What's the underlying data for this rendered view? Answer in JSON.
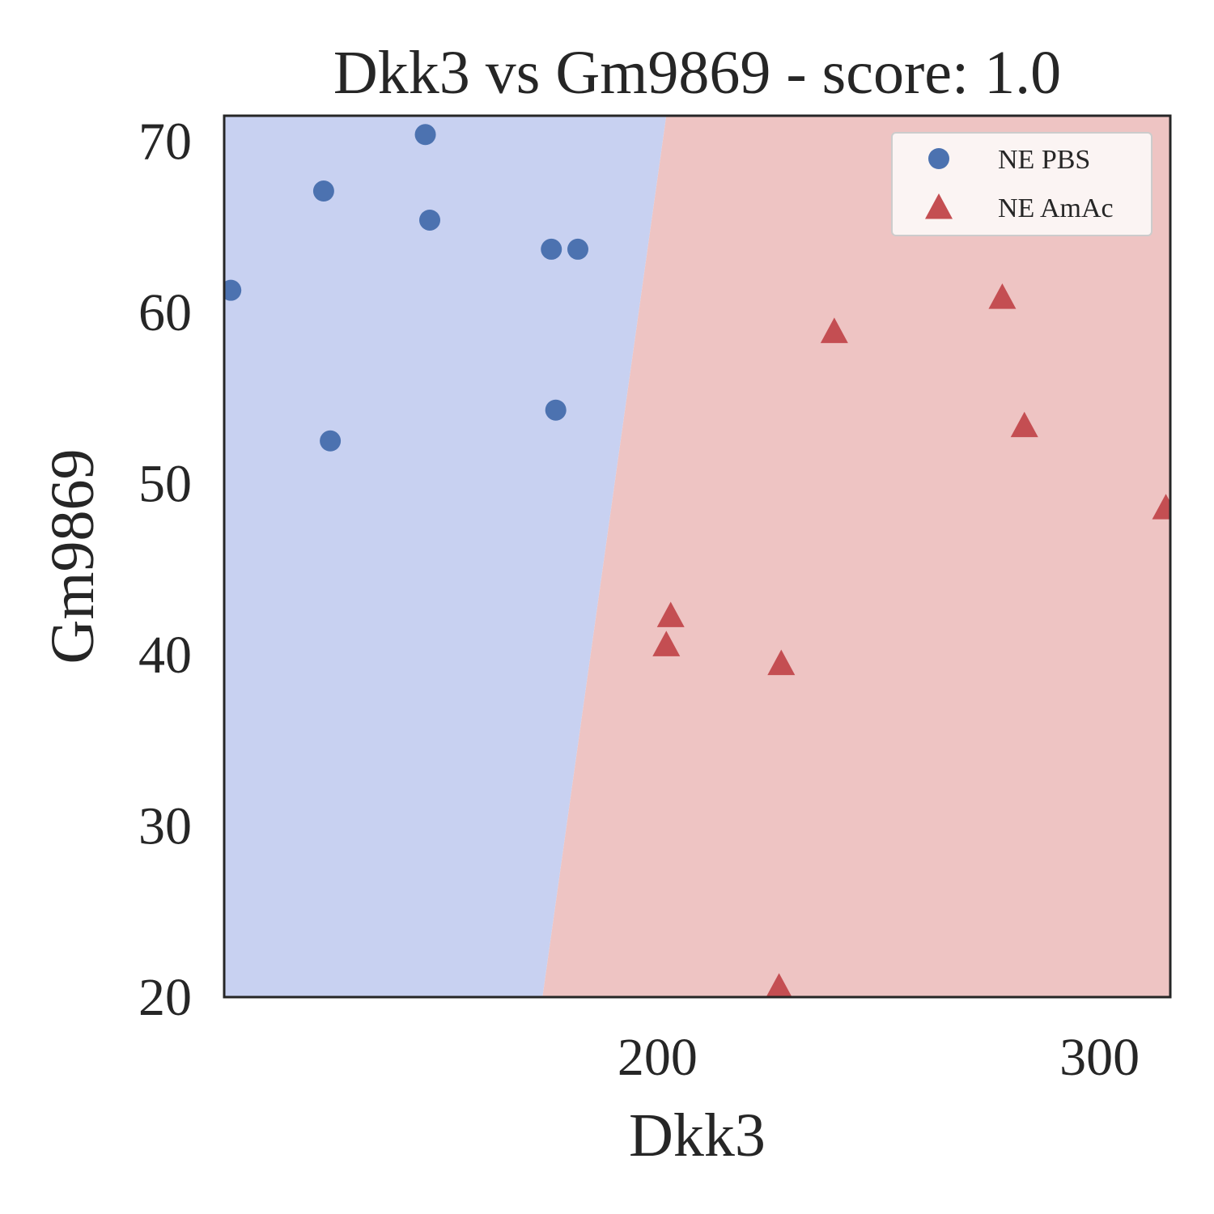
{
  "chart_data": {
    "type": "scatter",
    "title": "Dkk3 vs Gm9869 - score: 1.0",
    "xlabel": "Dkk3",
    "ylabel": "Gm9869",
    "xlim": [
      102,
      316
    ],
    "ylim": [
      20,
      71.5
    ],
    "xticks": [
      200,
      300
    ],
    "yticks": [
      20,
      30,
      40,
      50,
      60,
      70
    ],
    "grid": false,
    "legend_position": "top-right",
    "decision_boundary": {
      "points": [
        [
          174,
          20
        ],
        [
          202,
          71.5
        ]
      ],
      "left_class_color": "#c8d1f1",
      "right_class_color": "#eec4c3"
    },
    "series": [
      {
        "name": "NE PBS",
        "marker": "circle",
        "color": "#4c72b0",
        "x": [
          103.5,
          124.5,
          126,
          147.5,
          148.5,
          176,
          182,
          177
        ],
        "y": [
          61.3,
          67.1,
          52.5,
          70.4,
          65.4,
          63.7,
          63.7,
          54.3
        ]
      },
      {
        "name": "NE AmAc",
        "marker": "triangle",
        "color": "#c44e52",
        "x": [
          240,
          278,
          283,
          315,
          203,
          202,
          228,
          227.5
        ],
        "y": [
          58.9,
          60.9,
          53.4,
          48.6,
          42.3,
          40.6,
          39.5,
          20.6
        ]
      }
    ]
  }
}
